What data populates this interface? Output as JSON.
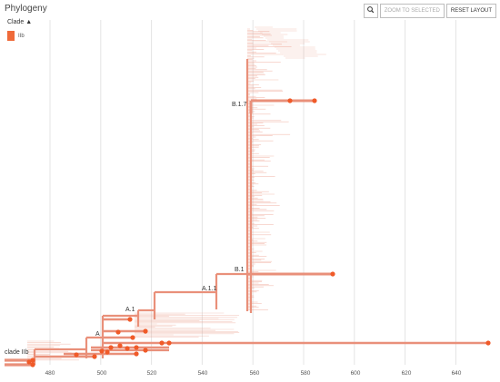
{
  "header": {
    "title": "Phylogeny"
  },
  "legend": {
    "title": "Clade",
    "items": [
      {
        "label": "IIb",
        "color": "#ef6a3a"
      }
    ]
  },
  "toolbar": {
    "zoom_icon": "magnifier-icon",
    "zoom_label": "ZOOM TO SELECTED",
    "reset_label": "RESET LAYOUT"
  },
  "colors": {
    "branch": "#e9907a",
    "tip": "#f05a28",
    "grid": "#e4e4e4"
  },
  "axis": {
    "ticks": [
      480,
      500,
      520,
      540,
      560,
      580,
      600,
      620,
      640
    ]
  },
  "clades": {
    "clade_iib": "clade IIb",
    "a": "A",
    "a1": "A.1",
    "a11": "A.1.1",
    "b1": "B.1",
    "b17": "B.1.7"
  }
}
